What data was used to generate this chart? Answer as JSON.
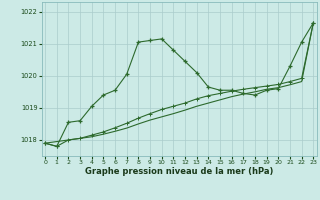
{
  "x": [
    0,
    1,
    2,
    3,
    4,
    5,
    6,
    7,
    8,
    9,
    10,
    11,
    12,
    13,
    14,
    15,
    16,
    17,
    18,
    19,
    20,
    21,
    22,
    23
  ],
  "line_jagged": [
    1017.9,
    1017.8,
    1018.55,
    1018.6,
    1019.05,
    1019.4,
    1019.55,
    1020.05,
    1021.05,
    1021.1,
    1021.15,
    1020.8,
    1020.45,
    1020.1,
    1019.65,
    1019.55,
    1019.55,
    1019.45,
    1019.4,
    1019.55,
    1019.6,
    1020.3,
    1021.05,
    1021.65
  ],
  "line_smooth": [
    1017.9,
    1017.8,
    1018.0,
    1018.05,
    1018.15,
    1018.25,
    1018.38,
    1018.52,
    1018.68,
    1018.82,
    1018.95,
    1019.05,
    1019.15,
    1019.28,
    1019.38,
    1019.45,
    1019.52,
    1019.58,
    1019.63,
    1019.68,
    1019.73,
    1019.82,
    1019.92,
    1021.65
  ],
  "line_straight": [
    1017.9,
    1017.95,
    1018.0,
    1018.05,
    1018.1,
    1018.18,
    1018.27,
    1018.37,
    1018.5,
    1018.62,
    1018.72,
    1018.82,
    1018.93,
    1019.05,
    1019.15,
    1019.25,
    1019.35,
    1019.43,
    1019.5,
    1019.58,
    1019.63,
    1019.72,
    1019.82,
    1021.65
  ],
  "yticks": [
    1018,
    1019,
    1020,
    1021,
    1022
  ],
  "xticks": [
    0,
    1,
    2,
    3,
    4,
    5,
    6,
    7,
    8,
    9,
    10,
    11,
    12,
    13,
    14,
    15,
    16,
    17,
    18,
    19,
    20,
    21,
    22,
    23
  ],
  "ylim": [
    1017.5,
    1022.3
  ],
  "xlim": [
    -0.3,
    23.3
  ],
  "xlabel": "Graphe pression niveau de la mer (hPa)",
  "line_color": "#2d6a2d",
  "bg_color": "#cceae6",
  "grid_color": "#aacccc",
  "outer_bg": "#cceae6",
  "spine_color": "#88bbbb"
}
